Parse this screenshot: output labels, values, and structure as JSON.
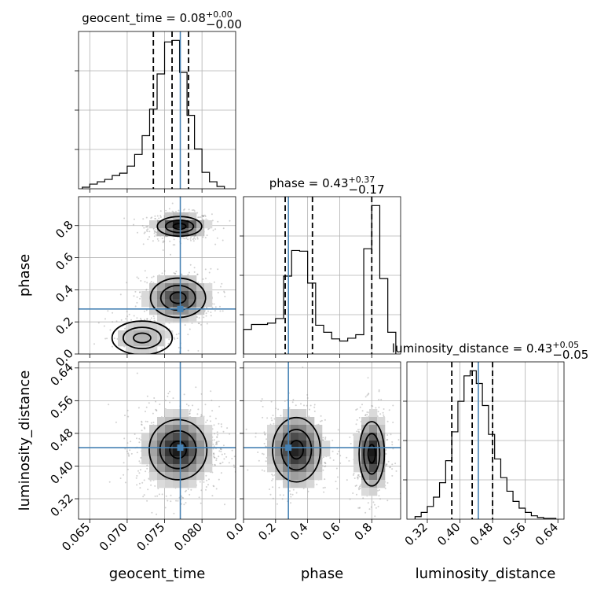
{
  "colors": {
    "truth": "#4682b4",
    "hist": "#000000",
    "grid": "#b0b0b0",
    "scatter": "#9a9a9a",
    "density_dark": "#1a1a1a",
    "density_light": "#f2f2f2"
  },
  "chart_data": {
    "type": "corner",
    "parameters": [
      "geocent_time",
      "phase",
      "luminosity_distance"
    ],
    "titles": [
      {
        "param": "geocent_time",
        "base": "geocent_time = 0.08",
        "sup": "+0.00",
        "sub": "−0.00"
      },
      {
        "param": "phase",
        "base": "phase = 0.43",
        "sup": "+0.37",
        "sub": "−0.17"
      },
      {
        "param": "luminosity_distance",
        "base": "luminosity_distance = 0.43",
        "sup": "+0.05",
        "sub": "−0.05"
      }
    ],
    "axes": {
      "geocent_time": {
        "range": [
          0.0635,
          0.0845
        ],
        "ticks": [
          0.065,
          0.07,
          0.075,
          0.08
        ],
        "tick_labels": [
          "0.065",
          "0.070",
          "0.075",
          "0.080"
        ]
      },
      "phase": {
        "range": [
          0.0,
          0.98
        ],
        "ticks": [
          0.0,
          0.2,
          0.4,
          0.6,
          0.8
        ],
        "tick_labels": [
          "0.0",
          "0.2",
          "0.4",
          "0.6",
          "0.8"
        ]
      },
      "luminosity_distance": {
        "range": [
          0.27,
          0.655
        ],
        "ticks": [
          0.32,
          0.4,
          0.48,
          0.56,
          0.64
        ],
        "tick_labels": [
          "0.32",
          "0.40",
          "0.48",
          "0.56",
          "0.64"
        ]
      }
    },
    "truth": {
      "geocent_time": 0.0771,
      "phase": 0.28,
      "luminosity_distance": 0.445
    },
    "quantiles": {
      "geocent_time": [
        0.0735,
        0.076,
        0.0782
      ],
      "phase": [
        0.26,
        0.43,
        0.8
      ],
      "luminosity_distance": [
        0.38,
        0.43,
        0.48
      ]
    },
    "histograms": {
      "geocent_time": {
        "bin_edges": [
          0.064,
          0.065,
          0.066,
          0.067,
          0.068,
          0.069,
          0.07,
          0.071,
          0.072,
          0.073,
          0.074,
          0.075,
          0.076,
          0.077,
          0.078,
          0.079,
          0.08,
          0.081,
          0.082,
          0.083
        ],
        "counts": [
          2,
          6,
          9,
          12,
          17,
          20,
          29,
          44,
          68,
          102,
          147,
          188,
          190,
          149,
          94,
          51,
          21,
          9,
          3
        ]
      },
      "phase": {
        "bin_edges": [
          0.0,
          0.05,
          0.1,
          0.15,
          0.2,
          0.25,
          0.3,
          0.35,
          0.4,
          0.45,
          0.5,
          0.55,
          0.6,
          0.65,
          0.7,
          0.75,
          0.8,
          0.85,
          0.9,
          0.95
        ],
        "counts": [
          70,
          84,
          84,
          88,
          101,
          222,
          295,
          293,
          202,
          82,
          62,
          43,
          37,
          45,
          55,
          300,
          423,
          215,
          62
        ]
      },
      "luminosity_distance": {
        "bin_edges": [
          0.29,
          0.305,
          0.32,
          0.335,
          0.35,
          0.365,
          0.38,
          0.395,
          0.41,
          0.425,
          0.44,
          0.455,
          0.47,
          0.485,
          0.5,
          0.515,
          0.53,
          0.545,
          0.56,
          0.575,
          0.59,
          0.605,
          0.62,
          0.635
        ],
        "counts": [
          3,
          8,
          15,
          26,
          43,
          69,
          103,
          139,
          169,
          175,
          160,
          134,
          100,
          71,
          49,
          33,
          21,
          13,
          8,
          4,
          2,
          1,
          1
        ]
      }
    },
    "density_2d": [
      {
        "x": "geocent_time",
        "y": "phase",
        "modes": [
          {
            "cx": 0.077,
            "cy": 0.795,
            "sx": 0.0017,
            "sy": 0.035,
            "w": 1.0
          },
          {
            "cx": 0.0768,
            "cy": 0.35,
            "sx": 0.0021,
            "sy": 0.07,
            "w": 0.75
          },
          {
            "cx": 0.072,
            "cy": 0.1,
            "sx": 0.0023,
            "sy": 0.06,
            "w": 0.25
          }
        ]
      },
      {
        "x": "geocent_time",
        "y": "luminosity_distance",
        "modes": [
          {
            "cx": 0.0768,
            "cy": 0.44,
            "sx": 0.0022,
            "sy": 0.042,
            "w": 1.0
          }
        ]
      },
      {
        "x": "phase",
        "y": "luminosity_distance",
        "modes": [
          {
            "cx": 0.33,
            "cy": 0.44,
            "sx": 0.085,
            "sy": 0.045,
            "w": 1.0
          },
          {
            "cx": 0.8,
            "cy": 0.43,
            "sx": 0.045,
            "sy": 0.045,
            "w": 1.05
          }
        ]
      }
    ]
  }
}
